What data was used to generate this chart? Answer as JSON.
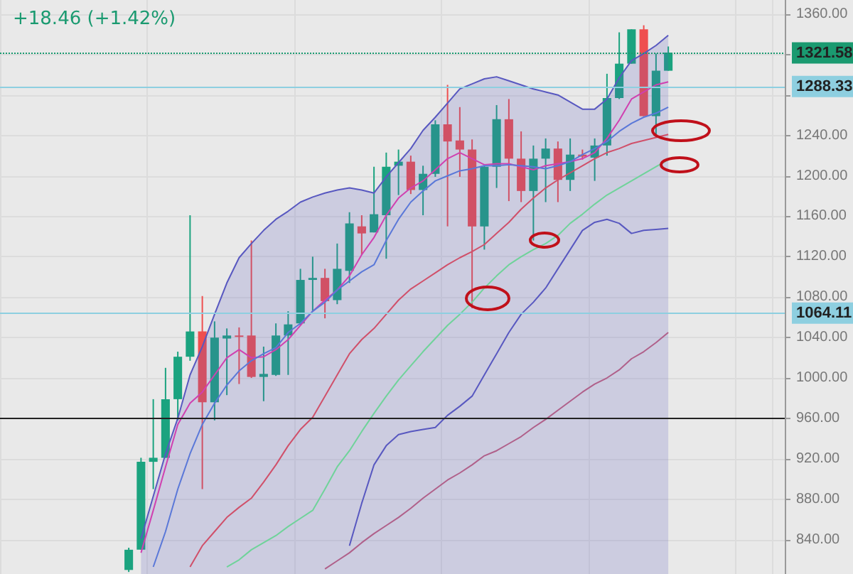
{
  "chart_data": {
    "type": "candlestick",
    "title": "+18.46 (+1.42%)",
    "categories": [
      null,
      null,
      null,
      null,
      null,
      null,
      null,
      null,
      null,
      null,
      null,
      null,
      null,
      null,
      null,
      null,
      null,
      null,
      null,
      null,
      null,
      null,
      null,
      null,
      null,
      null,
      null,
      null,
      null,
      null,
      null,
      null,
      null,
      null,
      null,
      null,
      null,
      null,
      null,
      null,
      null,
      null,
      null,
      null,
      null,
      null,
      null,
      null,
      null,
      null,
      null,
      null,
      null,
      null,
      null,
      null,
      null,
      null,
      null,
      null,
      null,
      null,
      null,
      null
    ],
    "ohlc": [
      null,
      null,
      null,
      null,
      null,
      null,
      null,
      null,
      null,
      null,
      [
        810,
        832,
        808,
        830
      ],
      [
        830,
        921,
        830,
        917
      ],
      [
        917,
        979,
        890,
        921
      ],
      [
        921,
        1010,
        921,
        979
      ],
      [
        979,
        1026,
        958,
        1021
      ],
      [
        1021,
        1161,
        1017,
        1046
      ],
      [
        1046,
        1081,
        890,
        976
      ],
      [
        976,
        1056,
        958,
        1040
      ],
      [
        1039,
        1049,
        983,
        1042
      ],
      [
        1042,
        1050,
        994,
        1041
      ],
      [
        1042,
        1136,
        1000,
        1001
      ],
      [
        1001,
        1031,
        977,
        1004
      ],
      [
        1003,
        1054,
        1002,
        1042
      ],
      [
        1042,
        1066,
        1003,
        1053
      ],
      [
        1054,
        1108,
        1052,
        1097
      ],
      [
        1097,
        1120,
        1066,
        1099
      ],
      [
        1099,
        1108,
        1059,
        1076
      ],
      [
        1077,
        1133,
        1073,
        1108
      ],
      [
        1106,
        1164,
        1094,
        1153
      ],
      [
        1150,
        1161,
        1122,
        1143
      ],
      [
        1144,
        1209,
        1144,
        1162
      ],
      [
        1161,
        1223,
        1118,
        1209
      ],
      [
        1210,
        1226,
        1181,
        1214
      ],
      [
        1214,
        1220,
        1182,
        1186
      ],
      [
        1186,
        1210,
        1161,
        1202
      ],
      [
        1202,
        1255,
        1199,
        1251
      ],
      [
        1251,
        1290,
        1150,
        1234
      ],
      [
        1235,
        1268,
        1199,
        1226
      ],
      [
        1226,
        1236,
        1069,
        1150
      ],
      [
        1150,
        1210,
        1127,
        1209
      ],
      [
        1209,
        1270,
        1188,
        1256
      ],
      [
        1256,
        1276,
        1175,
        1217
      ],
      [
        1217,
        1244,
        1174,
        1185
      ],
      [
        1185,
        1230,
        1136,
        1217
      ],
      [
        1217,
        1237,
        1174,
        1227
      ],
      [
        1227,
        1234,
        1174,
        1196
      ],
      [
        1196,
        1237,
        1185,
        1221
      ],
      [
        1221,
        1226,
        1216,
        1219
      ],
      [
        1218,
        1237,
        1195,
        1230
      ],
      [
        1230,
        1301,
        1220,
        1277
      ],
      [
        1277,
        1342,
        1276,
        1311
      ],
      [
        1311,
        1345,
        1311,
        1345
      ],
      [
        1345,
        1349,
        1259,
        1259
      ],
      [
        1259,
        1321,
        1238,
        1304
      ],
      [
        1304,
        1328,
        1304,
        1322
      ],
      null,
      null,
      null,
      null,
      null,
      null,
      null,
      null,
      null
    ],
    "series": [
      {
        "type": "area",
        "color": "#5858c0",
        "values": [
          null,
          null,
          null,
          null,
          null,
          null,
          null,
          null,
          null,
          null,
          null,
          841,
          883,
          925,
          960,
          1003,
          1031,
          1063,
          1094,
          1119,
          1133,
          1146,
          1157,
          1165,
          1174,
          1179,
          1183,
          1186,
          1188,
          1186,
          1183,
          1199,
          1213,
          1227,
          1245,
          1258,
          1272,
          1286,
          1291,
          1296,
          1298,
          1294,
          1290,
          1286,
          1283,
          1280,
          1273,
          1266,
          1266,
          1276,
          1297,
          1314,
          1321,
          1329,
          1339,
          null,
          null,
          null,
          null,
          null,
          null,
          null,
          null,
          null
        ]
      },
      {
        "type": "line",
        "color": "#5858c0",
        "values": [
          null,
          null,
          null,
          null,
          null,
          null,
          null,
          null,
          null,
          null,
          null,
          null,
          null,
          null,
          null,
          null,
          null,
          null,
          null,
          null,
          null,
          null,
          null,
          null,
          null,
          null,
          null,
          null,
          834,
          876,
          914,
          933,
          944,
          947,
          949,
          951,
          963,
          972,
          982,
          1003,
          1024,
          1045,
          1063,
          1075,
          1089,
          1108,
          1127,
          1146,
          1154,
          1157,
          1153,
          1143,
          1146,
          1147,
          1148,
          null,
          null,
          null,
          null,
          null,
          null,
          null,
          null,
          null
        ]
      },
      {
        "type": "line",
        "color": "#d0506a",
        "values": [
          null,
          null,
          null,
          null,
          null,
          null,
          null,
          null,
          null,
          null,
          null,
          null,
          null,
          null,
          null,
          813,
          834,
          848,
          862,
          872,
          881,
          897,
          914,
          933,
          949,
          961,
          982,
          1003,
          1024,
          1038,
          1049,
          1063,
          1077,
          1088,
          1096,
          1104,
          1112,
          1119,
          1125,
          1132,
          1143,
          1154,
          1167,
          1178,
          1188,
          1196,
          1203,
          1210,
          1217,
          1223,
          1227,
          1232,
          1235,
          1238,
          1241,
          null,
          null,
          null,
          null,
          null,
          null,
          null,
          null,
          null
        ]
      },
      {
        "type": "line",
        "color": "#d040b0",
        "values": [
          null,
          null,
          null,
          null,
          null,
          null,
          null,
          null,
          null,
          null,
          null,
          827,
          869,
          912,
          954,
          975,
          986,
          1003,
          1020,
          1028,
          1020,
          1021,
          1028,
          1038,
          1052,
          1066,
          1077,
          1087,
          1101,
          1122,
          1139,
          1161,
          1178,
          1188,
          1195,
          1206,
          1217,
          1223,
          1217,
          1211,
          1212,
          1212,
          1209,
          1206,
          1210,
          1212,
          1214,
          1217,
          1223,
          1237,
          1255,
          1276,
          1283,
          1290,
          1293,
          null,
          null,
          null,
          null,
          null,
          null,
          null,
          null,
          null
        ]
      },
      {
        "type": "line",
        "color": "#5a78d8",
        "values": [
          null,
          null,
          null,
          null,
          null,
          null,
          null,
          null,
          null,
          null,
          null,
          null,
          813,
          848,
          890,
          925,
          954,
          975,
          993,
          1007,
          1017,
          1024,
          1030,
          1045,
          1054,
          1066,
          1075,
          1087,
          1096,
          1105,
          1112,
          1136,
          1157,
          1174,
          1185,
          1195,
          1200,
          1205,
          1207,
          1210,
          1210,
          1211,
          1210,
          1209,
          1207,
          1210,
          1214,
          1221,
          1227,
          1234,
          1244,
          1252,
          1258,
          1262,
          1268,
          null,
          null,
          null,
          null,
          null,
          null,
          null,
          null,
          null
        ]
      },
      {
        "type": "line",
        "color": "#6fd39a",
        "values": [
          null,
          null,
          null,
          null,
          null,
          null,
          null,
          null,
          null,
          null,
          null,
          null,
          null,
          null,
          null,
          null,
          null,
          null,
          813,
          820,
          830,
          837,
          844,
          853,
          861,
          869,
          890,
          912,
          928,
          947,
          965,
          982,
          998,
          1012,
          1026,
          1039,
          1052,
          1063,
          1075,
          1089,
          1101,
          1112,
          1120,
          1127,
          1133,
          1141,
          1153,
          1162,
          1172,
          1181,
          1188,
          1195,
          1202,
          1209,
          1216,
          null,
          null,
          null,
          null,
          null,
          null,
          null,
          null,
          null
        ]
      },
      {
        "type": "line",
        "color": "#b0608a",
        "values": [
          null,
          null,
          null,
          null,
          null,
          null,
          null,
          null,
          null,
          null,
          null,
          null,
          null,
          null,
          null,
          null,
          null,
          null,
          null,
          null,
          null,
          null,
          null,
          null,
          null,
          null,
          811,
          819,
          827,
          837,
          846,
          854,
          862,
          871,
          881,
          890,
          899,
          906,
          914,
          923,
          928,
          935,
          942,
          951,
          959,
          968,
          977,
          986,
          994,
          1000,
          1008,
          1019,
          1026,
          1035,
          1045,
          null,
          null,
          null,
          null,
          null,
          null,
          null,
          null,
          null
        ]
      }
    ],
    "ylim": [
      806,
      1374
    ],
    "yticks": [
      {
        "value": 840,
        "label": "840.00"
      },
      {
        "value": 880,
        "label": "880.00"
      },
      {
        "value": 920,
        "label": "920.00"
      },
      {
        "value": 960,
        "label": "960.00"
      },
      {
        "value": 1000,
        "label": "1000.00"
      },
      {
        "value": 1040,
        "label": "1040.00"
      },
      {
        "value": 1080,
        "label": "1080.00"
      },
      {
        "value": 1120,
        "label": "1120.00"
      },
      {
        "value": 1160,
        "label": "1160.00"
      },
      {
        "value": 1200,
        "label": "1200.00"
      },
      {
        "value": 1240,
        "label": "1240.00"
      },
      {
        "value": 1280,
        "label": null
      },
      {
        "value": 1320,
        "label": null
      },
      {
        "value": 1360,
        "label": "1360.00"
      }
    ],
    "ref_lines": [
      {
        "axis": "y",
        "value": 1321.58,
        "label": "1321.58",
        "color": "#1a9a70",
        "line_style": "dotted"
      },
      {
        "axis": "y",
        "value": 1288.33,
        "label": "1288.33",
        "color": "#8ecfe0",
        "line_style": "solid"
      },
      {
        "axis": "y",
        "value": 1064.11,
        "label": "1064.11",
        "color": "#8ecfe0",
        "line_style": "solid"
      },
      {
        "axis": "y",
        "value": 960,
        "color": "#222222",
        "line_style": "solid"
      }
    ],
    "grid": true,
    "tick_labels": "y",
    "line_style": "solid"
  }
}
